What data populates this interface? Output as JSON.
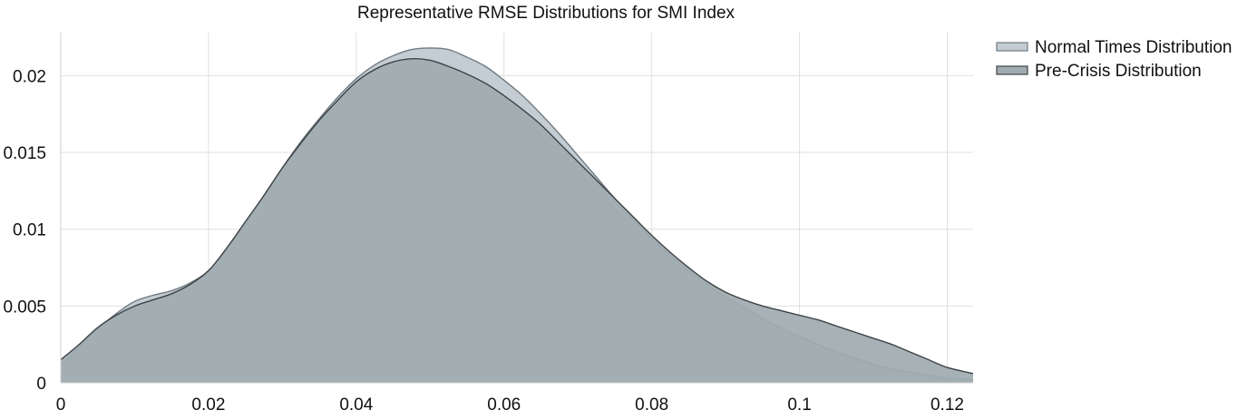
{
  "chart_data": {
    "type": "area",
    "title": "Representative RMSE Distributions for SMI Index",
    "xlabel": "",
    "ylabel": "",
    "xlim": [
      0,
      0.1235
    ],
    "ylim": [
      0,
      0.0228
    ],
    "x_ticks": [
      0,
      0.02,
      0.04,
      0.06,
      0.08,
      0.1,
      0.12
    ],
    "x_tick_labels": [
      "0",
      "0.02",
      "0.04",
      "0.06",
      "0.08",
      "0.1",
      "0.12"
    ],
    "y_ticks": [
      0,
      0.005,
      0.01,
      0.015,
      0.02
    ],
    "y_tick_labels": [
      "0",
      "0.005",
      "0.01",
      "0.015",
      "0.02"
    ],
    "grid": true,
    "legend_position": "top-right",
    "series": [
      {
        "name": "Normal Times Distribution",
        "fill": "#c4cdd3",
        "line": "#6f7b82",
        "x": [
          0,
          0.0025,
          0.005,
          0.0075,
          0.01,
          0.0125,
          0.015,
          0.0175,
          0.02,
          0.0225,
          0.025,
          0.0275,
          0.03,
          0.0325,
          0.035,
          0.0375,
          0.04,
          0.0425,
          0.045,
          0.0475,
          0.05,
          0.0525,
          0.055,
          0.0575,
          0.06,
          0.0625,
          0.065,
          0.0675,
          0.07,
          0.0725,
          0.075,
          0.0775,
          0.08,
          0.0825,
          0.085,
          0.0875,
          0.09,
          0.0925,
          0.095,
          0.0975,
          0.1,
          0.1025,
          0.105,
          0.1075,
          0.11,
          0.1125,
          0.115,
          0.1175,
          0.12,
          0.1235
        ],
        "y": [
          0.0011,
          0.0023,
          0.0035,
          0.0045,
          0.0053,
          0.0057,
          0.006,
          0.0065,
          0.0073,
          0.0087,
          0.0104,
          0.0122,
          0.014,
          0.0157,
          0.0172,
          0.0186,
          0.0198,
          0.0207,
          0.0213,
          0.0217,
          0.0218,
          0.0217,
          0.0212,
          0.0206,
          0.0197,
          0.0187,
          0.0175,
          0.0162,
          0.0148,
          0.0134,
          0.012,
          0.0107,
          0.0094,
          0.0083,
          0.0073,
          0.0064,
          0.0056,
          0.0049,
          0.0042,
          0.0036,
          0.003,
          0.0025,
          0.002,
          0.0016,
          0.0012,
          0.0009,
          0.0007,
          0.0005,
          0.0003,
          0.0002
        ]
      },
      {
        "name": "Pre-Crisis Distribution",
        "fill": "#a0abb0",
        "line": "#3d4347",
        "x": [
          0,
          0.0025,
          0.005,
          0.0075,
          0.01,
          0.0125,
          0.015,
          0.0175,
          0.02,
          0.0225,
          0.025,
          0.0275,
          0.03,
          0.0325,
          0.035,
          0.0375,
          0.04,
          0.0425,
          0.045,
          0.0475,
          0.05,
          0.0525,
          0.055,
          0.0575,
          0.06,
          0.0625,
          0.065,
          0.0675,
          0.07,
          0.0725,
          0.075,
          0.0775,
          0.08,
          0.0825,
          0.085,
          0.0875,
          0.09,
          0.0925,
          0.095,
          0.0975,
          0.1,
          0.1025,
          0.105,
          0.1075,
          0.11,
          0.1125,
          0.115,
          0.1175,
          0.12,
          0.1235
        ],
        "y": [
          0.0015,
          0.0025,
          0.0036,
          0.0044,
          0.005,
          0.0054,
          0.0058,
          0.0064,
          0.0073,
          0.0088,
          0.0105,
          0.0122,
          0.014,
          0.0156,
          0.0171,
          0.0184,
          0.0196,
          0.0204,
          0.0209,
          0.0211,
          0.021,
          0.0206,
          0.0201,
          0.0195,
          0.0187,
          0.0178,
          0.0168,
          0.0156,
          0.0144,
          0.0132,
          0.012,
          0.0108,
          0.0096,
          0.0085,
          0.0075,
          0.0066,
          0.0059,
          0.0054,
          0.005,
          0.0047,
          0.0044,
          0.0041,
          0.0037,
          0.0033,
          0.0029,
          0.0025,
          0.002,
          0.0015,
          0.001,
          0.0006
        ]
      }
    ]
  }
}
